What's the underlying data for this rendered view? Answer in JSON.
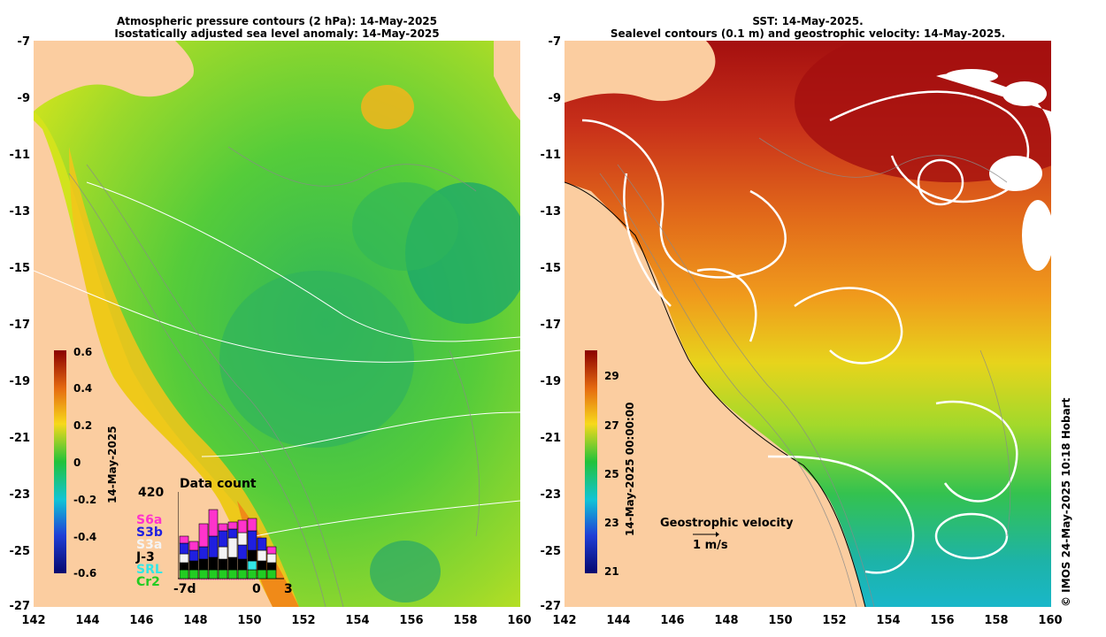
{
  "left": {
    "title1": "Atmospheric pressure contours (2 hPa): 14-May-2025",
    "title2": "Isostatically adjusted sea level anomaly: 14-May-2025",
    "colorbar": {
      "ticks": [
        "0.6",
        "0.4",
        "0.2",
        "0",
        "-0.2",
        "-0.4",
        "-0.6"
      ],
      "label": "14-May-2025"
    },
    "data_count": {
      "title": "Data count",
      "max": "420",
      "missions": [
        {
          "name": "S6a",
          "color": "#ff33cc"
        },
        {
          "name": "S3b",
          "color": "#1f1fe0"
        },
        {
          "name": "S3a",
          "color": "#f4f4f4"
        },
        {
          "name": "J-3",
          "color": "#000000"
        },
        {
          "name": "SRL",
          "color": "#33e6e6"
        },
        {
          "name": "Cr2",
          "color": "#22cc22"
        }
      ],
      "x_ticks": [
        "-7d",
        "0",
        "3"
      ]
    }
  },
  "right": {
    "title1": "SST: 14-May-2025.",
    "title2": "Sealevel contours (0.1 m) and geostrophic velocity: 14-May-2025.",
    "colorbar": {
      "ticks": [
        "29",
        "27",
        "25",
        "23",
        "21"
      ],
      "label": "14-May-2025 00:00:00"
    },
    "legend": {
      "title": "Geostrophic velocity",
      "scale": "1 m/s"
    }
  },
  "y_ticks": [
    "-7",
    "-9",
    "-11",
    "-13",
    "-15",
    "-17",
    "-19",
    "-21",
    "-23",
    "-25",
    "-27"
  ],
  "x_ticks": [
    "142",
    "144",
    "146",
    "148",
    "150",
    "152",
    "154",
    "156",
    "158",
    "160"
  ],
  "credit": "© IMOS 24-May-2025 10:18 Hobart",
  "colors": {
    "land": "#fbcda0",
    "ocean_high": "#a40f0f",
    "ocean_low": "#1fb86a"
  }
}
